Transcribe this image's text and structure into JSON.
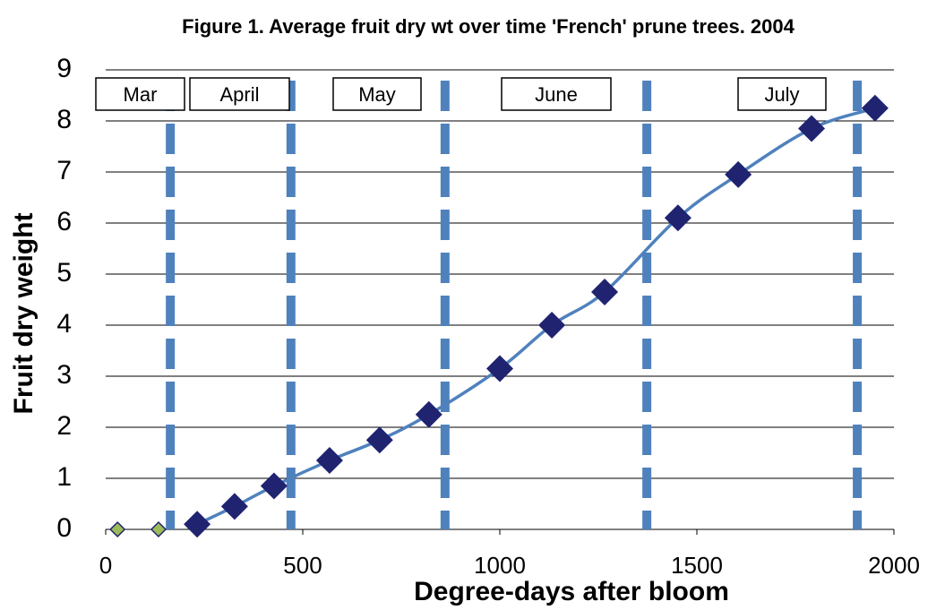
{
  "chart_data": {
    "type": "scatter",
    "title": "Figure 1.  Average fruit dry wt over time 'French' prune trees.  2004",
    "x_label": "Degree-days after bloom",
    "y_label": "Fruit dry weight",
    "xlim": [
      0,
      2000
    ],
    "xticks": [
      0,
      500,
      1000,
      1500,
      2000
    ],
    "ylim": [
      0,
      9
    ],
    "yticks": [
      0,
      1,
      2,
      3,
      4,
      5,
      6,
      7,
      8,
      9
    ],
    "grid": true,
    "series": [
      {
        "color": "#1f2370",
        "line_color": "#4f81bd",
        "smooth": true,
        "x": [
          232,
          327,
          427,
          568,
          695,
          820,
          1000,
          1132,
          1266,
          1452,
          1605,
          1791,
          1952
        ],
        "values": [
          0.1,
          0.45,
          0.85,
          1.35,
          1.75,
          2.25,
          3.15,
          4.0,
          4.65,
          6.1,
          6.95,
          7.85,
          8.25
        ]
      },
      {
        "color": "#9bbb59",
        "x": [
          30,
          134
        ],
        "values": [
          0,
          0
        ]
      }
    ],
    "month_dividers": {
      "color": "#4f81bd",
      "x": [
        164,
        470,
        861,
        1373,
        1907
      ]
    },
    "annotations": [
      "Mar",
      "April",
      "May",
      "June",
      "July"
    ]
  }
}
